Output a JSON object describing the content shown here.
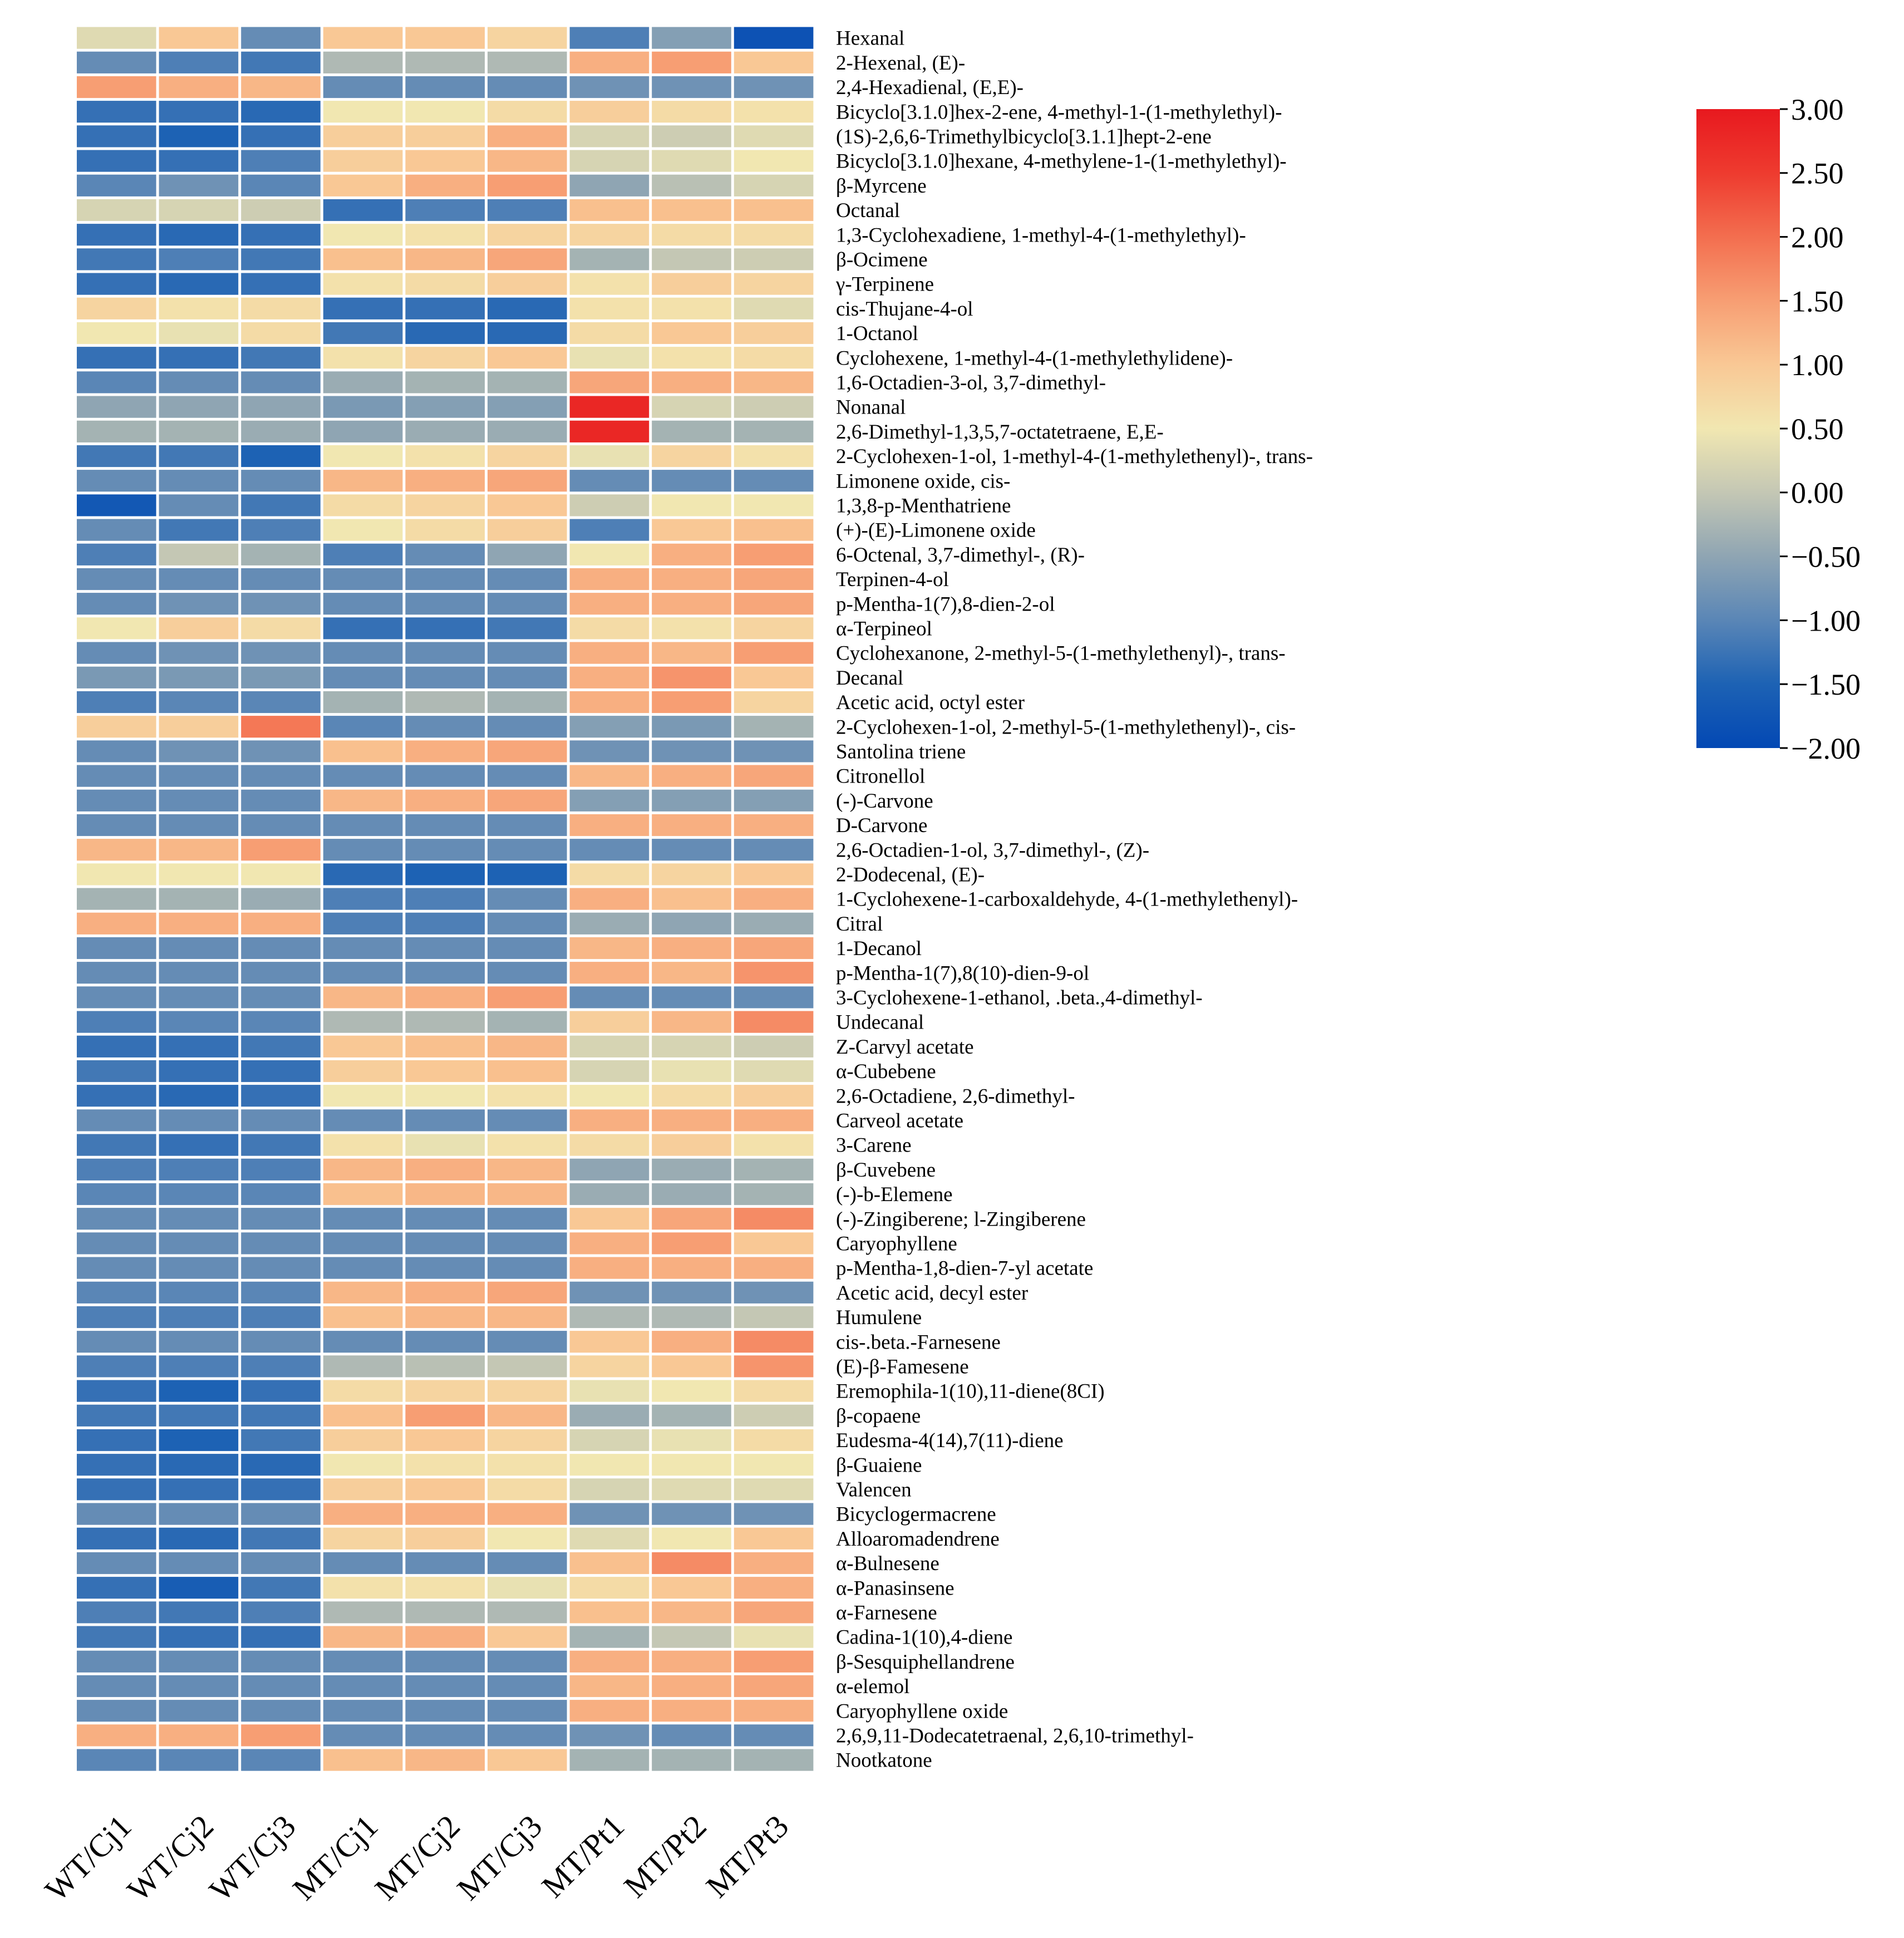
{
  "chart_data": {
    "type": "heatmap",
    "title": "",
    "columns": [
      "WT/Cj1",
      "WT/Cj2",
      "WT/Cj3",
      "MT/Cj1",
      "MT/Cj2",
      "MT/Cj3",
      "MT/Pt1",
      "MT/Pt2",
      "MT/Pt3"
    ],
    "rows": [
      "Hexanal",
      "2-Hexenal, (E)-",
      "2,4-Hexadienal, (E,E)-",
      "Bicyclo[3.1.0]hex-2-ene, 4-methyl-1-(1-methylethyl)-",
      "(1S)-2,6,6-Trimethylbicyclo[3.1.1]hept-2-ene",
      "Bicyclo[3.1.0]hexane, 4-methylene-1-(1-methylethyl)-",
      "β-Myrcene",
      "Octanal",
      "1,3-Cyclohexadiene, 1-methyl-4-(1-methylethyl)-",
      "β-Ocimene",
      "γ-Terpinene",
      "cis-Thujane-4-ol",
      "1-Octanol",
      "Cyclohexene, 1-methyl-4-(1-methylethylidene)-",
      "1,6-Octadien-3-ol, 3,7-dimethyl-",
      "Nonanal",
      "2,6-Dimethyl-1,3,5,7-octatetraene, E,E-",
      "2-Cyclohexen-1-ol, 1-methyl-4-(1-methylethenyl)-, trans-",
      "Limonene oxide, cis-",
      "1,3,8-p-Menthatriene",
      "(+)-(E)-Limonene oxide",
      "6-Octenal, 3,7-dimethyl-, (R)-",
      "Terpinen-4-ol",
      "p-Mentha-1(7),8-dien-2-ol",
      "α-Terpineol",
      "Cyclohexanone, 2-methyl-5-(1-methylethenyl)-, trans-",
      "Decanal",
      "Acetic acid, octyl ester",
      "2-Cyclohexen-1-ol, 2-methyl-5-(1-methylethenyl)-, cis-",
      "Santolina triene",
      "Citronellol",
      "(-)-Carvone",
      "D-Carvone",
      "2,6-Octadien-1-ol, 3,7-dimethyl-, (Z)-",
      "2-Dodecenal, (E)-",
      "1-Cyclohexene-1-carboxaldehyde, 4-(1-methylethenyl)-",
      "Citral",
      "1-Decanol",
      "p-Mentha-1(7),8(10)-dien-9-ol",
      "3-Cyclohexene-1-ethanol, .beta.,4-dimethyl-",
      "Undecanal",
      "Z-Carvyl acetate",
      "α-Cubebene",
      "2,6-Octadiene, 2,6-dimethyl-",
      "Carveol acetate",
      "3-Carene",
      "β-Cuvebene",
      "(-)-b-Elemene",
      "(-)-Zingiberene; l-Zingiberene",
      "Caryophyllene",
      "p-Mentha-1,8-dien-7-yl acetate",
      "Acetic acid, decyl ester",
      "Humulene",
      "cis-.beta.-Farnesene",
      "(E)-β-Famesene",
      "Eremophila-1(10),11-diene(8CI)",
      "β-copaene",
      "Eudesma-4(14),7(11)-diene",
      "β-Guaiene",
      "Valencen",
      "Bicyclogermacrene",
      "Alloaromadendrene",
      "α-Bulnesene",
      "α-Panasinsene",
      "α-Farnesene",
      "Cadina-1(10),4-diene",
      "β-Sesquiphellandrene",
      "α-elemol",
      "Caryophyllene oxide",
      "2,6,9,11-Dodecatetraenal, 2,6,10-trimethyl-",
      "Nootkatone"
    ],
    "values": [
      [
        0.3,
        1.0,
        -0.9,
        1.0,
        1.0,
        0.8,
        -1.1,
        -0.6,
        -1.8
      ],
      [
        -0.9,
        -1.1,
        -1.2,
        -0.2,
        -0.2,
        -0.2,
        1.3,
        1.5,
        1.0
      ],
      [
        1.5,
        1.3,
        1.2,
        -0.9,
        -0.9,
        -0.9,
        -0.8,
        -0.8,
        -0.8
      ],
      [
        -1.3,
        -1.3,
        -1.4,
        0.5,
        0.5,
        0.7,
        0.9,
        0.7,
        0.6
      ],
      [
        -1.3,
        -1.5,
        -1.3,
        0.9,
        0.9,
        1.3,
        0.2,
        0.1,
        0.3
      ],
      [
        -1.3,
        -1.3,
        -1.1,
        0.9,
        1.0,
        1.2,
        0.2,
        0.3,
        0.5
      ],
      [
        -1.0,
        -0.8,
        -1.0,
        1.0,
        1.3,
        1.5,
        -0.5,
        -0.1,
        0.2
      ],
      [
        0.2,
        0.2,
        0.1,
        -1.3,
        -1.1,
        -1.1,
        1.1,
        1.1,
        1.1
      ],
      [
        -1.3,
        -1.4,
        -1.3,
        0.5,
        0.6,
        0.8,
        0.8,
        0.7,
        0.7
      ],
      [
        -1.2,
        -1.1,
        -1.2,
        1.1,
        1.2,
        1.4,
        -0.3,
        0.0,
        0.1
      ],
      [
        -1.3,
        -1.4,
        -1.3,
        0.6,
        0.7,
        0.9,
        0.6,
        0.9,
        0.8
      ],
      [
        0.8,
        0.6,
        0.7,
        -1.3,
        -1.3,
        -1.4,
        0.6,
        0.6,
        0.3
      ],
      [
        0.5,
        0.4,
        0.7,
        -1.2,
        -1.4,
        -1.4,
        0.7,
        1.0,
        0.9
      ],
      [
        -1.3,
        -1.3,
        -1.2,
        0.6,
        0.8,
        1.0,
        0.4,
        0.6,
        0.7
      ],
      [
        -1.0,
        -0.9,
        -0.9,
        -0.4,
        -0.3,
        -0.3,
        1.4,
        1.3,
        1.2
      ],
      [
        -0.5,
        -0.5,
        -0.5,
        -0.7,
        -0.6,
        -0.6,
        2.8,
        0.2,
        0.1
      ],
      [
        -0.3,
        -0.3,
        -0.4,
        -0.5,
        -0.4,
        -0.4,
        2.8,
        -0.3,
        -0.3
      ],
      [
        -1.2,
        -1.2,
        -1.5,
        0.5,
        0.6,
        0.8,
        0.4,
        0.8,
        0.6
      ],
      [
        -0.9,
        -0.9,
        -0.9,
        1.2,
        1.3,
        1.4,
        -0.9,
        -0.9,
        -0.9
      ],
      [
        -1.7,
        -0.9,
        -1.2,
        0.7,
        0.8,
        1.0,
        0.1,
        0.5,
        0.5
      ],
      [
        -0.9,
        -1.2,
        -1.1,
        0.5,
        0.7,
        0.9,
        -1.1,
        1.0,
        1.1
      ],
      [
        -1.1,
        0.0,
        -0.3,
        -1.1,
        -0.9,
        -0.5,
        0.5,
        1.3,
        1.5
      ],
      [
        -0.9,
        -0.9,
        -0.9,
        -0.9,
        -0.9,
        -0.9,
        1.3,
        1.3,
        1.4
      ],
      [
        -0.9,
        -0.8,
        -0.8,
        -0.9,
        -0.9,
        -0.9,
        1.3,
        1.3,
        1.4
      ],
      [
        0.5,
        0.9,
        0.7,
        -1.3,
        -1.3,
        -1.2,
        0.7,
        0.6,
        0.8
      ],
      [
        -0.9,
        -0.8,
        -0.8,
        -0.9,
        -0.9,
        -0.9,
        1.3,
        1.2,
        1.5
      ],
      [
        -0.7,
        -0.7,
        -0.7,
        -0.9,
        -0.9,
        -0.9,
        1.3,
        1.6,
        1.0
      ],
      [
        -1.1,
        -1.0,
        -1.0,
        -0.3,
        -0.2,
        -0.3,
        1.3,
        1.5,
        0.8
      ],
      [
        0.9,
        0.9,
        1.9,
        -1.0,
        -0.9,
        -0.9,
        -0.6,
        -0.7,
        -0.3
      ],
      [
        -0.9,
        -0.8,
        -0.8,
        1.1,
        1.3,
        1.4,
        -0.8,
        -0.8,
        -0.8
      ],
      [
        -0.9,
        -0.9,
        -0.9,
        -0.9,
        -0.9,
        -0.9,
        1.2,
        1.3,
        1.4
      ],
      [
        -0.9,
        -0.9,
        -0.9,
        1.2,
        1.3,
        1.4,
        -0.6,
        -0.6,
        -0.6
      ],
      [
        -0.9,
        -0.9,
        -0.9,
        -0.9,
        -0.9,
        -0.9,
        1.3,
        1.3,
        1.3
      ],
      [
        1.2,
        1.2,
        1.5,
        -0.9,
        -0.9,
        -0.9,
        -0.9,
        -0.9,
        -0.9
      ],
      [
        0.5,
        0.5,
        0.5,
        -1.4,
        -1.5,
        -1.5,
        0.7,
        0.8,
        1.0
      ],
      [
        -0.3,
        -0.3,
        -0.4,
        -1.1,
        -1.1,
        -0.9,
        1.3,
        1.1,
        1.3
      ],
      [
        1.3,
        1.3,
        1.3,
        -1.1,
        -1.1,
        -0.9,
        -0.4,
        -0.5,
        -0.4
      ],
      [
        -0.9,
        -0.9,
        -0.9,
        -0.9,
        -0.9,
        -0.9,
        1.2,
        1.3,
        1.4
      ],
      [
        -0.9,
        -0.9,
        -0.9,
        -0.9,
        -0.9,
        -0.9,
        1.3,
        1.2,
        1.6
      ],
      [
        -0.9,
        -0.9,
        -0.9,
        1.2,
        1.3,
        1.5,
        -0.9,
        -0.9,
        -0.9
      ],
      [
        -1.1,
        -1.0,
        -1.0,
        -0.2,
        -0.2,
        -0.3,
        0.9,
        1.2,
        1.7
      ],
      [
        -1.3,
        -1.3,
        -1.2,
        1.0,
        1.1,
        1.2,
        0.2,
        0.2,
        0.1
      ],
      [
        -1.2,
        -1.3,
        -1.3,
        0.9,
        1.0,
        1.1,
        0.2,
        0.4,
        0.3
      ],
      [
        -1.3,
        -1.4,
        -1.3,
        0.5,
        0.5,
        0.6,
        0.5,
        0.7,
        0.9
      ],
      [
        -0.9,
        -0.9,
        -0.9,
        -0.9,
        -0.9,
        -0.9,
        1.3,
        1.3,
        1.3
      ],
      [
        -1.2,
        -1.3,
        -1.2,
        0.6,
        0.4,
        0.6,
        0.7,
        0.9,
        0.6
      ],
      [
        -1.1,
        -1.1,
        -1.1,
        1.2,
        1.3,
        1.2,
        -0.5,
        -0.4,
        -0.3
      ],
      [
        -1.0,
        -1.0,
        -1.0,
        1.1,
        1.2,
        1.2,
        -0.4,
        -0.4,
        -0.3
      ],
      [
        -0.9,
        -0.9,
        -0.9,
        -0.9,
        -0.9,
        -0.9,
        1.0,
        1.4,
        1.7
      ],
      [
        -0.9,
        -0.9,
        -0.9,
        -0.9,
        -0.9,
        -0.9,
        1.3,
        1.5,
        1.0
      ],
      [
        -0.9,
        -0.9,
        -0.9,
        -0.9,
        -0.9,
        -0.9,
        1.3,
        1.3,
        1.3
      ],
      [
        -1.0,
        -1.0,
        -1.0,
        1.2,
        1.3,
        1.4,
        -0.8,
        -0.8,
        -0.8
      ],
      [
        -1.1,
        -1.1,
        -1.1,
        1.1,
        1.2,
        1.2,
        -0.2,
        -0.2,
        0.0
      ],
      [
        -0.9,
        -0.9,
        -0.9,
        -0.9,
        -0.9,
        -0.9,
        1.0,
        1.3,
        1.7
      ],
      [
        -1.1,
        -1.1,
        -1.1,
        -0.2,
        -0.1,
        0.0,
        0.8,
        1.0,
        1.6
      ],
      [
        -1.3,
        -1.5,
        -1.3,
        0.7,
        0.8,
        0.8,
        0.4,
        0.5,
        0.7
      ],
      [
        -1.2,
        -1.2,
        -1.2,
        1.1,
        1.5,
        1.2,
        -0.4,
        -0.3,
        0.1
      ],
      [
        -1.3,
        -1.5,
        -1.2,
        0.9,
        1.0,
        0.8,
        0.2,
        0.4,
        0.7
      ],
      [
        -1.3,
        -1.4,
        -1.4,
        0.5,
        0.6,
        0.6,
        0.5,
        0.5,
        0.5
      ],
      [
        -1.3,
        -1.3,
        -1.3,
        0.9,
        1.0,
        0.7,
        0.2,
        0.3,
        0.3
      ],
      [
        -0.9,
        -0.9,
        -0.9,
        1.3,
        1.3,
        1.3,
        -0.8,
        -0.8,
        -0.8
      ],
      [
        -1.3,
        -1.4,
        -1.2,
        0.8,
        0.9,
        0.5,
        0.3,
        0.5,
        1.0
      ],
      [
        -0.9,
        -0.9,
        -0.9,
        -0.9,
        -0.9,
        -0.9,
        1.1,
        1.7,
        1.3
      ],
      [
        -1.3,
        -1.6,
        -1.2,
        0.6,
        0.6,
        0.4,
        0.7,
        1.0,
        1.3
      ],
      [
        -1.1,
        -1.2,
        -1.1,
        -0.2,
        -0.2,
        -0.2,
        1.1,
        1.2,
        1.4
      ],
      [
        -1.2,
        -1.3,
        -1.3,
        1.2,
        1.3,
        1.0,
        -0.3,
        0.0,
        0.4
      ],
      [
        -0.9,
        -0.9,
        -0.9,
        -0.9,
        -0.9,
        -0.9,
        1.3,
        1.3,
        1.5
      ],
      [
        -0.9,
        -0.9,
        -0.9,
        -0.9,
        -0.9,
        -0.9,
        1.2,
        1.3,
        1.4
      ],
      [
        -0.9,
        -0.9,
        -0.9,
        -0.9,
        -0.9,
        -0.9,
        1.3,
        1.3,
        1.3
      ],
      [
        1.3,
        1.3,
        1.5,
        -0.9,
        -0.9,
        -0.9,
        -0.8,
        -0.9,
        -0.9
      ],
      [
        -1.0,
        -1.0,
        -1.0,
        1.1,
        1.2,
        1.0,
        -0.3,
        -0.3,
        -0.3
      ]
    ],
    "colorbar": {
      "vmin": -2.0,
      "vmax": 3.0,
      "ticks": [
        "3.00",
        "2.50",
        "2.00",
        "1.50",
        "1.00",
        "0.50",
        "0.00",
        "−0.50",
        "−1.00",
        "−1.50",
        "−2.00"
      ],
      "tick_values": [
        3.0,
        2.5,
        2.0,
        1.5,
        1.0,
        0.5,
        0.0,
        -0.5,
        -1.0,
        -1.5,
        -2.0
      ],
      "colors": [
        "#0348b4",
        "#1d62b4",
        "#5a86b6",
        "#8fa5b3",
        "#c4c7b4",
        "#f1e7b1",
        "#f9c895",
        "#f79e73",
        "#f36e4f",
        "#ee3b2f",
        "#e8191f"
      ]
    },
    "xlabel": "",
    "ylabel": ""
  }
}
